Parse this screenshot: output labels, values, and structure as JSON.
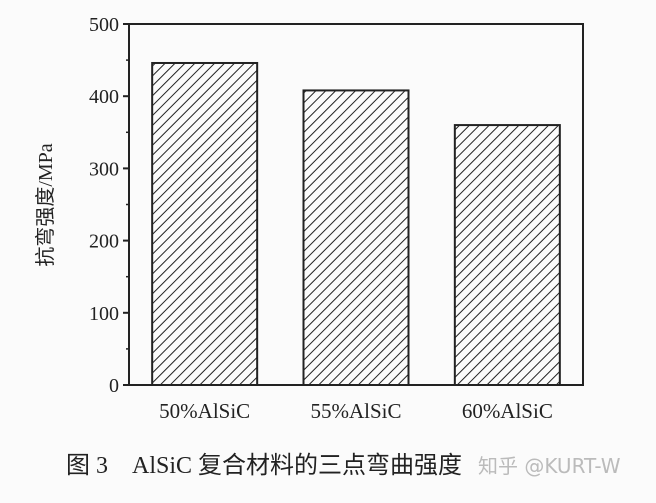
{
  "chart_data": {
    "type": "bar",
    "categories": [
      "50%AlSiC",
      "55%AlSiC",
      "60%AlSiC"
    ],
    "values": [
      446,
      408,
      360
    ],
    "title": "",
    "xlabel": "",
    "ylabel": "抗弯强度/MPa",
    "ylim": [
      0,
      500
    ],
    "yticks": [
      0,
      100,
      200,
      300,
      400,
      500
    ],
    "grid": false,
    "bar_fill": "diagonal hatch",
    "caption": "图 3    AlSiC 复合材料的三点弯曲强度",
    "watermark": "知乎 @KURT-W"
  }
}
